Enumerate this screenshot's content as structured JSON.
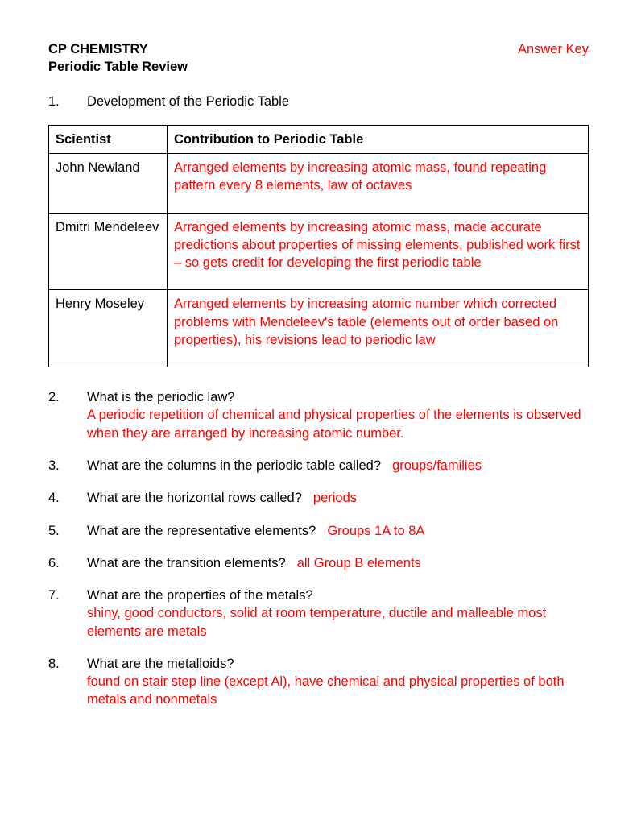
{
  "header": {
    "title_line1": "CP CHEMISTRY",
    "answer_key": "Answer Key",
    "title_line2": "Periodic Table Review"
  },
  "q1": {
    "num": "1.",
    "text": "Development of the Periodic Table"
  },
  "table": {
    "col1_header": "Scientist",
    "col2_header": "Contribution to Periodic Table",
    "rows": [
      {
        "scientist": "John Newland",
        "contribution": "Arranged elements by increasing atomic mass, found repeating pattern every 8 elements, law of octaves"
      },
      {
        "scientist": "Dmitri Mendeleev",
        "contribution": "Arranged elements by increasing atomic mass, made accurate predictions about properties of missing elements, published work first – so gets credit for developing the first periodic table"
      },
      {
        "scientist": "Henry Moseley",
        "contribution": "Arranged elements by increasing atomic number which corrected problems with Mendeleev's table (elements out of order based on properties), his revisions lead to periodic law"
      }
    ]
  },
  "questions": [
    {
      "num": "2.",
      "q": "What is the periodic law?",
      "a": "A periodic repetition of chemical and physical properties of the elements is observed when they are arranged by increasing atomic number.",
      "inline": false
    },
    {
      "num": "3.",
      "q": "What are the columns in the periodic table called?",
      "a": "groups/families",
      "inline": true
    },
    {
      "num": "4.",
      "q": "What are the horizontal rows called?",
      "a": "periods",
      "inline": true
    },
    {
      "num": "5.",
      "q": "What are the representative elements?",
      "a": "Groups 1A to 8A",
      "inline": true
    },
    {
      "num": "6.",
      "q": "What are the transition elements?",
      "a": "all Group B elements",
      "inline": true
    },
    {
      "num": "7.",
      "q": "What are the properties of the metals?",
      "a": "shiny, good conductors, solid at room temperature, ductile and malleable most elements are metals",
      "inline": false
    },
    {
      "num": "8.",
      "q": "What are the metalloids?",
      "a": "found on stair step line (except Al), have chemical and physical properties of both metals and nonmetals",
      "inline": false
    }
  ]
}
